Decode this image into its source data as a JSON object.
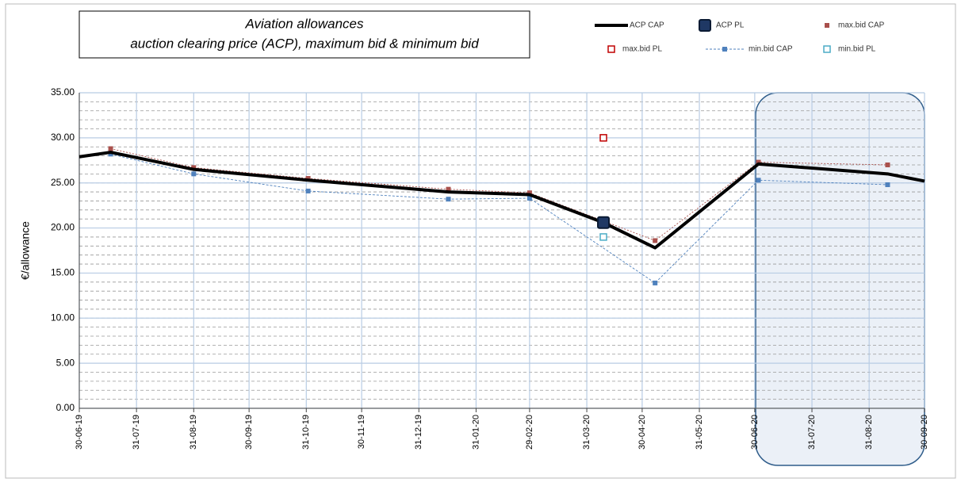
{
  "chart_data": {
    "type": "line",
    "title": [
      "Aviation allowances",
      "auction clearing price (ACP), maximum bid & minimum bid"
    ],
    "y_label": "€/allowance",
    "xlim": [
      "30-06-19",
      "30-09-20"
    ],
    "xticks": [
      "30-06-19",
      "31-07-19",
      "31-08-19",
      "30-09-19",
      "31-10-19",
      "30-11-19",
      "31-12-19",
      "31-01-20",
      "29-02-20",
      "31-03-20",
      "30-04-20",
      "31-05-20",
      "30-06-20",
      "31-07-20",
      "31-08-20",
      "30-09-20"
    ],
    "ylim": [
      0,
      35
    ],
    "yticks": [
      {
        "value": 0,
        "label": "0.00"
      },
      {
        "value": 5,
        "label": "5.00"
      },
      {
        "value": 10,
        "label": "10.00"
      },
      {
        "value": 15,
        "label": "15.00"
      },
      {
        "value": 20,
        "label": "20.00"
      },
      {
        "value": 25,
        "label": "25.00"
      },
      {
        "value": 30,
        "label": "30.00"
      },
      {
        "value": 35,
        "label": "35.00"
      }
    ],
    "grid": true,
    "series": [
      {
        "name": "ACP CAP",
        "color": "#000000",
        "style": "line",
        "x": [
          "30-06-19",
          "17-07-19",
          "31-08-19",
          "01-11-19",
          "16-01-20",
          "29-02-20",
          "09-04-20",
          "07-05-20",
          "02-07-20",
          "10-09-20",
          "30-09-20"
        ],
        "values": [
          27.9,
          28.4,
          26.5,
          25.3,
          24.0,
          23.7,
          20.6,
          17.8,
          27.1,
          26.0,
          25.2
        ]
      },
      {
        "name": "ACP PL",
        "color": "#1f3864",
        "style": "big-square",
        "x": [
          "09-04-20"
        ],
        "values": [
          20.6
        ]
      },
      {
        "name": "max.bid CAP",
        "color": "#a9504c",
        "style": "square-dotted",
        "x": [
          "17-07-19",
          "31-08-19",
          "01-11-19",
          "16-01-20",
          "29-02-20",
          "07-05-20",
          "02-07-20",
          "10-09-20"
        ],
        "values": [
          28.8,
          26.7,
          25.5,
          24.3,
          23.9,
          18.6,
          27.3,
          27.0
        ]
      },
      {
        "name": "max.bid PL",
        "color": "#c00000",
        "style": "hollow",
        "x": [
          "09-04-20"
        ],
        "values": [
          30.0
        ]
      },
      {
        "name": "min.bid CAP",
        "color": "#4f81bd",
        "style": "square-dashed",
        "x": [
          "17-07-19",
          "31-08-19",
          "01-11-19",
          "16-01-20",
          "29-02-20",
          "07-05-20",
          "02-07-20",
          "10-09-20"
        ],
        "values": [
          28.2,
          26.0,
          24.1,
          23.2,
          23.3,
          13.9,
          25.3,
          24.8
        ]
      },
      {
        "name": "min.bid PL",
        "color": "#4bacc6",
        "style": "hollow",
        "x": [
          "09-04-20"
        ],
        "values": [
          19.0
        ]
      }
    ]
  }
}
